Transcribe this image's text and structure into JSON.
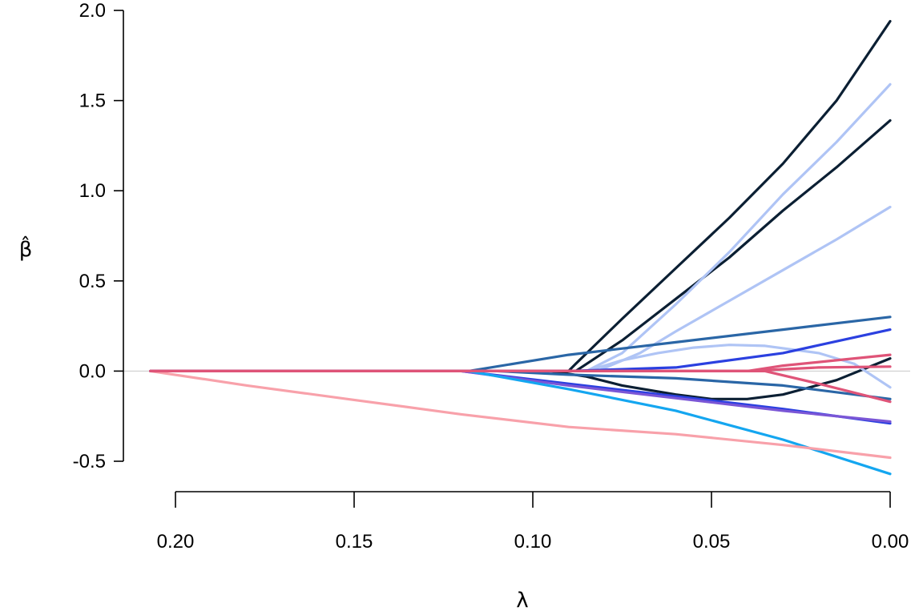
{
  "chart_data": {
    "type": "line",
    "title": "",
    "xlabel": "λ",
    "ylabel": "β̂",
    "xlim": [
      0.2075,
      0.0
    ],
    "ylim": [
      -0.5,
      2.0
    ],
    "x_reversed": true,
    "grid": false,
    "legend": "none",
    "zero_line": true,
    "xticks": [
      0.2,
      0.15,
      0.1,
      0.05,
      0.0
    ],
    "xtick_labels": [
      "0.20",
      "0.15",
      "0.10",
      "0.05",
      "0.00"
    ],
    "yticks": [
      -0.5,
      0.0,
      0.5,
      1.0,
      1.5,
      2.0
    ],
    "ytick_labels": [
      "-0.5",
      "0.0",
      "0.5",
      "1.0",
      "1.5",
      "2.0"
    ],
    "series": [
      {
        "color": "#0b1f33",
        "points": [
          [
            0.207,
            0
          ],
          [
            0.09,
            0
          ],
          [
            0.088,
            0.04
          ],
          [
            0.075,
            0.29
          ],
          [
            0.06,
            0.57
          ],
          [
            0.045,
            0.85
          ],
          [
            0.03,
            1.15
          ],
          [
            0.015,
            1.5
          ],
          [
            0,
            1.94
          ]
        ]
      },
      {
        "color": "#0b1f33",
        "points": [
          [
            0.207,
            0
          ],
          [
            0.088,
            0
          ],
          [
            0.075,
            0.17
          ],
          [
            0.06,
            0.4
          ],
          [
            0.045,
            0.63
          ],
          [
            0.03,
            0.89
          ],
          [
            0.015,
            1.13
          ],
          [
            0,
            1.39
          ]
        ]
      },
      {
        "color": "#0b1f33",
        "points": [
          [
            0.207,
            0
          ],
          [
            0.095,
            0
          ],
          [
            0.085,
            -0.03
          ],
          [
            0.075,
            -0.08
          ],
          [
            0.06,
            -0.13
          ],
          [
            0.05,
            -0.155
          ],
          [
            0.04,
            -0.155
          ],
          [
            0.03,
            -0.13
          ],
          [
            0.015,
            -0.05
          ],
          [
            0,
            0.07
          ]
        ]
      },
      {
        "color": "#afc4f5",
        "points": [
          [
            0.207,
            0
          ],
          [
            0.085,
            0
          ],
          [
            0.075,
            0.1
          ],
          [
            0.06,
            0.37
          ],
          [
            0.045,
            0.66
          ],
          [
            0.03,
            0.98
          ],
          [
            0.015,
            1.27
          ],
          [
            0,
            1.59
          ]
        ]
      },
      {
        "color": "#afc4f5",
        "points": [
          [
            0.207,
            0
          ],
          [
            0.082,
            0
          ],
          [
            0.07,
            0.1
          ],
          [
            0.06,
            0.22
          ],
          [
            0.045,
            0.39
          ],
          [
            0.03,
            0.56
          ],
          [
            0.015,
            0.73
          ],
          [
            0,
            0.91
          ]
        ]
      },
      {
        "color": "#afc4f5",
        "points": [
          [
            0.207,
            0
          ],
          [
            0.085,
            0
          ],
          [
            0.075,
            0.06
          ],
          [
            0.065,
            0.1
          ],
          [
            0.055,
            0.13
          ],
          [
            0.045,
            0.145
          ],
          [
            0.035,
            0.14
          ],
          [
            0.02,
            0.1
          ],
          [
            0.01,
            0.04
          ],
          [
            0,
            -0.09
          ]
        ]
      },
      {
        "color": "#2a66a6",
        "points": [
          [
            0.207,
            0
          ],
          [
            0.118,
            0
          ],
          [
            0.09,
            0.09
          ],
          [
            0.06,
            0.16
          ],
          [
            0.03,
            0.23
          ],
          [
            0,
            0.3
          ]
        ]
      },
      {
        "color": "#2a66a6",
        "points": [
          [
            0.207,
            0
          ],
          [
            0.11,
            0
          ],
          [
            0.09,
            -0.02
          ],
          [
            0.06,
            -0.04
          ],
          [
            0.03,
            -0.08
          ],
          [
            0,
            -0.155
          ]
        ]
      },
      {
        "color": "#2b40e0",
        "points": [
          [
            0.207,
            0
          ],
          [
            0.09,
            0
          ],
          [
            0.06,
            0.02
          ],
          [
            0.03,
            0.1
          ],
          [
            0,
            0.23
          ]
        ]
      },
      {
        "color": "#2b40e0",
        "points": [
          [
            0.207,
            0
          ],
          [
            0.12,
            0
          ],
          [
            0.09,
            -0.07
          ],
          [
            0.06,
            -0.14
          ],
          [
            0.03,
            -0.21
          ],
          [
            0,
            -0.29
          ]
        ]
      },
      {
        "color": "#7a56d6",
        "points": [
          [
            0.207,
            0
          ],
          [
            0.12,
            0
          ],
          [
            0.09,
            -0.08
          ],
          [
            0.06,
            -0.15
          ],
          [
            0.03,
            -0.22
          ],
          [
            0,
            -0.28
          ]
        ]
      },
      {
        "color": "#14a6f0",
        "points": [
          [
            0.207,
            0
          ],
          [
            0.118,
            0
          ],
          [
            0.09,
            -0.1
          ],
          [
            0.06,
            -0.22
          ],
          [
            0.03,
            -0.38
          ],
          [
            0,
            -0.57
          ]
        ]
      },
      {
        "color": "#f8a1aa",
        "points": [
          [
            0.207,
            0
          ],
          [
            0.18,
            -0.08
          ],
          [
            0.15,
            -0.16
          ],
          [
            0.12,
            -0.24
          ],
          [
            0.09,
            -0.31
          ],
          [
            0.06,
            -0.35
          ],
          [
            0.03,
            -0.41
          ],
          [
            0,
            -0.48
          ]
        ]
      },
      {
        "color": "#df5478",
        "points": [
          [
            0.207,
            0
          ],
          [
            0.04,
            0
          ],
          [
            0.03,
            0.03
          ],
          [
            0.015,
            0.06
          ],
          [
            0,
            0.09
          ]
        ]
      },
      {
        "color": "#df5478",
        "points": [
          [
            0.207,
            0
          ],
          [
            0.035,
            0
          ],
          [
            0.02,
            -0.07
          ],
          [
            0.01,
            -0.12
          ],
          [
            0,
            -0.17
          ]
        ]
      },
      {
        "color": "#df5478",
        "points": [
          [
            0.207,
            0
          ],
          [
            0.04,
            0
          ],
          [
            0.02,
            0.02
          ],
          [
            0,
            0.025
          ]
        ]
      }
    ]
  }
}
